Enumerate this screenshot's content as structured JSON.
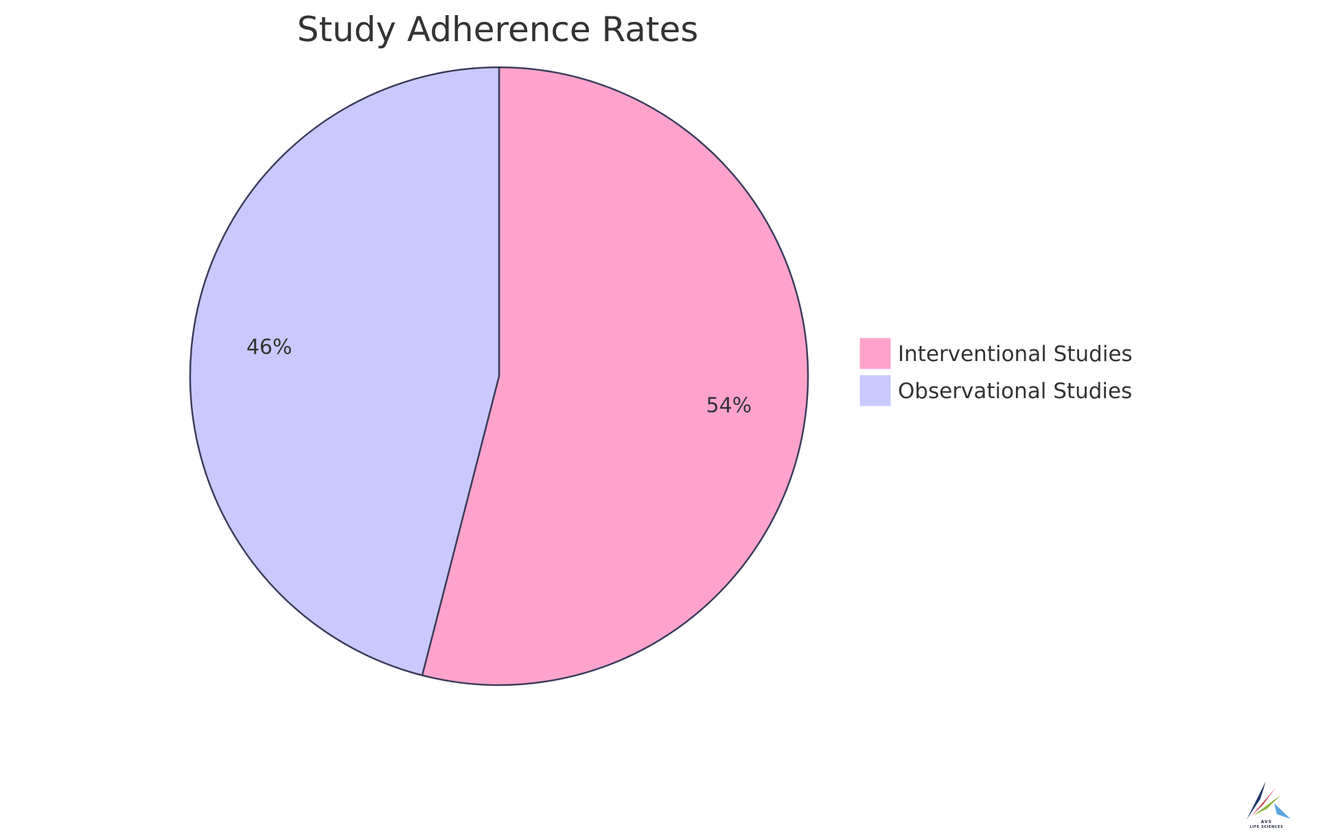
{
  "chart_data": {
    "type": "pie",
    "title": "Study Adherence Rates",
    "slices": [
      {
        "name": "Interventional Studies",
        "value": 54,
        "label": "54%",
        "color": "#ffa3cd"
      },
      {
        "name": "Observational Studies",
        "value": 46,
        "label": "46%",
        "color": "#c9c9ff"
      }
    ],
    "legend_position": "right",
    "stroke_color": "#3d3d5c"
  },
  "logo": {
    "text_top": "AVS",
    "text_bottom": "LIFE SCIENCES",
    "colors": [
      "#1f3a6b",
      "#b8243a",
      "#8ab43c",
      "#5ba4e0"
    ]
  }
}
